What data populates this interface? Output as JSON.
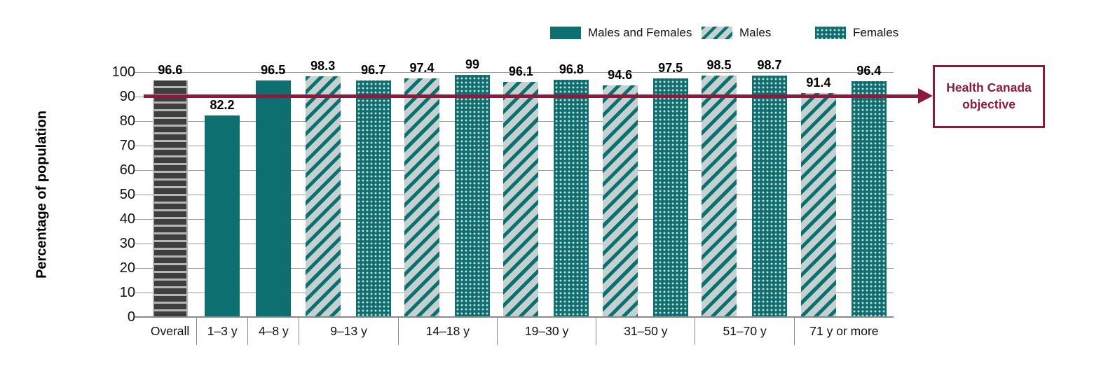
{
  "chart_data": {
    "type": "bar",
    "title": "",
    "xlabel": "",
    "ylabel": "Percentage of population",
    "ylim": [
      0,
      100
    ],
    "yticks": [
      0,
      10,
      20,
      30,
      40,
      50,
      60,
      70,
      80,
      90,
      100
    ],
    "grid": true,
    "legend": {
      "position": "top-right",
      "items": [
        {
          "label": "Males and Females",
          "style": "solid"
        },
        {
          "label": "Males",
          "style": "diagonal"
        },
        {
          "label": "Females",
          "style": "dots"
        }
      ]
    },
    "reference_line": {
      "value": 90,
      "label": "Health Canada objective",
      "color": "#8B1A3D"
    },
    "categories": [
      "Overall",
      "1–3 y",
      "4–8 y",
      "9–13 y",
      "14–18 y",
      "19–30 y",
      "31–50 y",
      "51–70 y",
      "71 y or more"
    ],
    "groups": [
      {
        "category": "Overall",
        "bars": [
          {
            "series": "Overall",
            "style": "gray",
            "value": 96.6,
            "label": "96.6"
          }
        ]
      },
      {
        "category": "1–3 y",
        "bars": [
          {
            "series": "Males and Females",
            "style": "solid",
            "value": 82.2,
            "label": "82.2"
          }
        ]
      },
      {
        "category": "4–8 y",
        "bars": [
          {
            "series": "Males and Females",
            "style": "solid",
            "value": 96.5,
            "label": "96.5"
          }
        ]
      },
      {
        "category": "9–13 y",
        "bars": [
          {
            "series": "Males",
            "style": "diagonal",
            "value": 98.3,
            "label": "98.3"
          },
          {
            "series": "Females",
            "style": "dots",
            "value": 96.7,
            "label": "96.7"
          }
        ]
      },
      {
        "category": "14–18 y",
        "bars": [
          {
            "series": "Males",
            "style": "diagonal",
            "value": 97.4,
            "label": "97.4"
          },
          {
            "series": "Females",
            "style": "dots",
            "value": 99,
            "label": "99"
          }
        ]
      },
      {
        "category": "19–30 y",
        "bars": [
          {
            "series": "Males",
            "style": "diagonal",
            "value": 96.1,
            "label": "96.1"
          },
          {
            "series": "Females",
            "style": "dots",
            "value": 96.8,
            "label": "96.8"
          }
        ]
      },
      {
        "category": "31–50 y",
        "bars": [
          {
            "series": "Males",
            "style": "diagonal",
            "value": 94.6,
            "label": "94.6"
          },
          {
            "series": "Females",
            "style": "dots",
            "value": 97.5,
            "label": "97.5"
          }
        ]
      },
      {
        "category": "51–70 y",
        "bars": [
          {
            "series": "Males",
            "style": "diagonal",
            "value": 98.5,
            "label": "98.5"
          },
          {
            "series": "Females",
            "style": "dots",
            "value": 98.7,
            "label": "98.7"
          }
        ]
      },
      {
        "category": "71 y or more",
        "bars": [
          {
            "series": "Males",
            "style": "diagonal",
            "value": 91.4,
            "label": "91.4"
          },
          {
            "series": "Females",
            "style": "dots",
            "value": 96.4,
            "label": "96.4"
          }
        ]
      }
    ],
    "colors": {
      "teal": "#0E6F70",
      "pattern_light": "#C3D2D0",
      "overall_dark": "#3E3E3E",
      "overall_stripe": "#B5B5B5",
      "maroon": "#8B1A3D",
      "gridline": "#999999",
      "axis": "#8A8A8A",
      "text": "#000000"
    }
  }
}
